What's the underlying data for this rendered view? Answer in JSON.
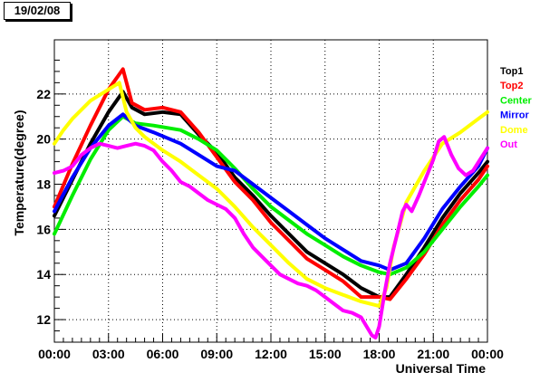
{
  "header": {
    "date": "19/02/08"
  },
  "chart_data": {
    "type": "line",
    "xlabel": "Universal Time",
    "ylabel": "Temperature(degree)",
    "xlim": [
      0,
      24
    ],
    "ylim": [
      11,
      24.4
    ],
    "x_ticks": [
      {
        "x": 0,
        "label": "00:00"
      },
      {
        "x": 3,
        "label": "03:00"
      },
      {
        "x": 6,
        "label": "06:00"
      },
      {
        "x": 9,
        "label": "09:00"
      },
      {
        "x": 12,
        "label": "12:00"
      },
      {
        "x": 15,
        "label": "15:00"
      },
      {
        "x": 18,
        "label": "18:00"
      },
      {
        "x": 21,
        "label": "21:00"
      },
      {
        "x": 24,
        "label": "00:00"
      }
    ],
    "y_ticks": [
      12,
      14,
      16,
      18,
      20,
      22
    ],
    "grid": true,
    "legend_position": "right",
    "series": [
      {
        "name": "Top1",
        "color": "#000000",
        "x": [
          0,
          1,
          2,
          3,
          3.8,
          4.3,
          5,
          6,
          7,
          8,
          9,
          10,
          11,
          12,
          13,
          14,
          15,
          16,
          17,
          18,
          18.6,
          19.5,
          20.5,
          21.5,
          22.5,
          23.5,
          24
        ],
        "y": [
          16.6,
          18.2,
          19.8,
          21.2,
          22.1,
          21.4,
          21.1,
          21.2,
          21.1,
          20.2,
          19.4,
          18.3,
          17.5,
          16.6,
          15.8,
          15,
          14.5,
          14,
          13.4,
          13,
          13,
          14,
          15.2,
          16.5,
          17.6,
          18.5,
          19
        ]
      },
      {
        "name": "Top2",
        "color": "#ff0000",
        "x": [
          0,
          1,
          2,
          3,
          3.8,
          4.3,
          5,
          6,
          7,
          8,
          9,
          10,
          11,
          12,
          13,
          14,
          15,
          16,
          17,
          18,
          18.6,
          19.5,
          20.5,
          21.5,
          22.5,
          23.5,
          24
        ],
        "y": [
          17,
          18.9,
          20.6,
          22.2,
          23.1,
          21.6,
          21.3,
          21.4,
          21.2,
          20.3,
          19.2,
          18.1,
          17.3,
          16.3,
          15.5,
          14.7,
          14.2,
          13.7,
          13,
          13,
          12.9,
          13.8,
          14.9,
          16.2,
          17.3,
          18.2,
          18.8
        ]
      },
      {
        "name": "Center",
        "color": "#00ee00",
        "x": [
          0,
          1,
          2,
          3,
          3.8,
          4.5,
          5.5,
          7,
          8,
          9,
          10,
          11,
          12,
          13,
          14,
          15,
          16,
          17,
          18,
          18.6,
          19.5,
          20.5,
          21.5,
          22.5,
          23.5,
          24
        ],
        "y": [
          15.8,
          17.5,
          19.1,
          20.4,
          21,
          20.7,
          20.6,
          20.4,
          20,
          19.5,
          18.7,
          17.8,
          17,
          16.4,
          15.8,
          15.3,
          14.8,
          14.4,
          14.1,
          14,
          14.3,
          15,
          16,
          17,
          17.9,
          18.4
        ]
      },
      {
        "name": "Mirror",
        "color": "#0000ff",
        "x": [
          0,
          1,
          2,
          3,
          3.8,
          4.5,
          5.5,
          7,
          8,
          9,
          10,
          11,
          12,
          13,
          14,
          15,
          16,
          17,
          18,
          18.6,
          19.5,
          20.5,
          21.5,
          22.5,
          23.5,
          24
        ],
        "y": [
          16.8,
          18.3,
          19.6,
          20.6,
          21.1,
          20.6,
          20.3,
          19.8,
          19.3,
          18.8,
          18.6,
          18,
          17.4,
          16.8,
          16.2,
          15.6,
          15.1,
          14.6,
          14.4,
          14.2,
          14.5,
          15.6,
          16.9,
          17.9,
          18.8,
          19.6
        ]
      },
      {
        "name": "Dome",
        "color": "#ffff00",
        "x": [
          0,
          0.5,
          1,
          2,
          3,
          3.6,
          4,
          4.5,
          5,
          6,
          7,
          8,
          9,
          10,
          11,
          12,
          13,
          14,
          15,
          16,
          17,
          18,
          18.4,
          18.8,
          19.5,
          20.5,
          21.5,
          22.5,
          23.5,
          24
        ],
        "y": [
          19.8,
          20.4,
          20.9,
          21.7,
          22.2,
          22.5,
          21.2,
          20.5,
          20.1,
          19.5,
          19,
          18.4,
          17.8,
          17,
          16.1,
          15.3,
          14.5,
          13.8,
          13.4,
          13.1,
          12.8,
          12.6,
          13.4,
          15.2,
          17.2,
          18.6,
          19.8,
          20.3,
          20.9,
          21.2
        ]
      },
      {
        "name": "Out",
        "color": "#ff00ff",
        "x": [
          0,
          0.5,
          1,
          1.5,
          2,
          2.5,
          3,
          3.5,
          4,
          4.5,
          5,
          5.5,
          6,
          6.5,
          7,
          7.5,
          8,
          8.5,
          9,
          9.5,
          10,
          10.5,
          11,
          11.5,
          12,
          12.5,
          13,
          13.5,
          14,
          14.5,
          15,
          15.5,
          16,
          16.5,
          17,
          17.3,
          17.6,
          17.8,
          18,
          18.3,
          18.6,
          19,
          19.3,
          19.5,
          19.8,
          20.2,
          20.6,
          21,
          21.3,
          21.6,
          22,
          22.4,
          22.8,
          23.2,
          23.6,
          24
        ],
        "y": [
          18.5,
          18.6,
          18.8,
          19.3,
          19.6,
          19.8,
          19.7,
          19.6,
          19.7,
          19.8,
          19.7,
          19.5,
          19,
          18.6,
          18.1,
          17.9,
          17.6,
          17.3,
          17.1,
          16.9,
          16.5,
          15.8,
          15.2,
          14.8,
          14.4,
          14,
          13.8,
          13.6,
          13.5,
          13.3,
          13,
          12.7,
          12.4,
          12.3,
          12.1,
          11.7,
          11.3,
          11.2,
          11.7,
          13.2,
          14.5,
          15.8,
          16.8,
          17.1,
          16.8,
          17.5,
          18.3,
          19.1,
          19.9,
          20.1,
          19.3,
          18.7,
          18.4,
          18.6,
          19.1,
          19.6
        ]
      }
    ]
  }
}
